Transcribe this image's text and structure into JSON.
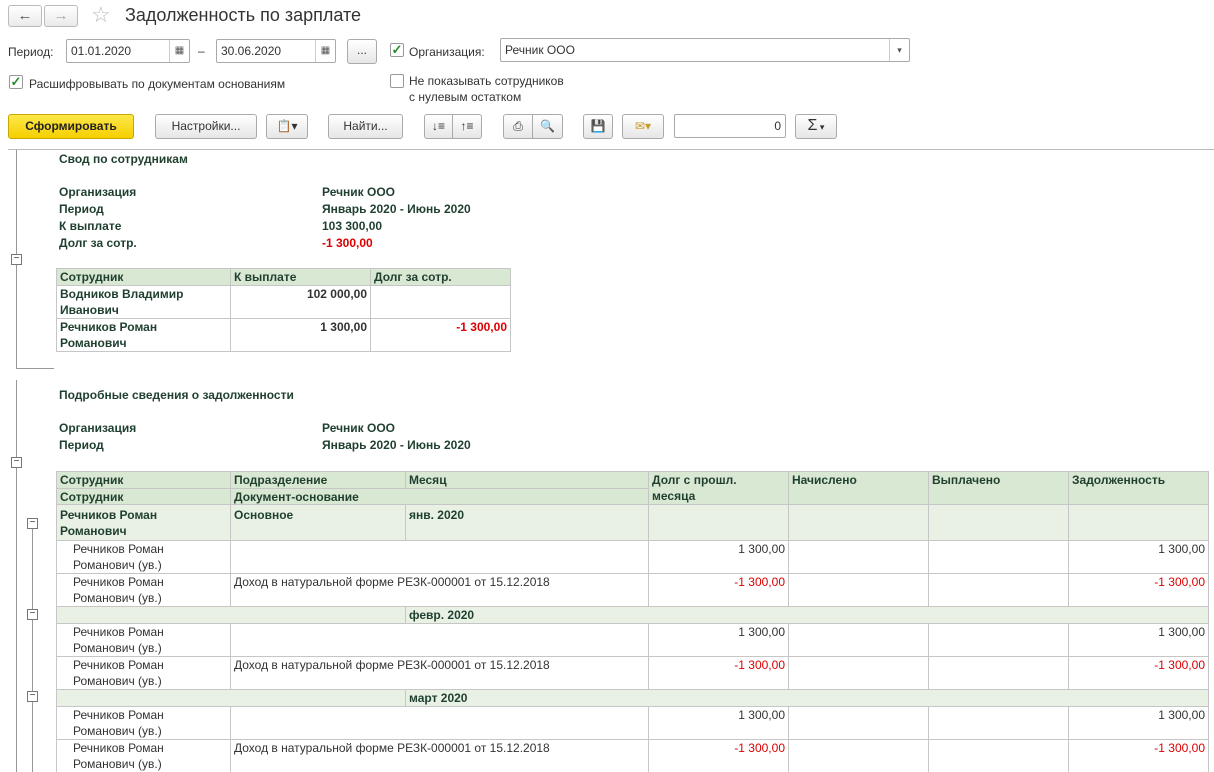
{
  "header": {
    "title": "Задолженность по зарплате",
    "back_icon": "←",
    "forward_icon": "→",
    "star_icon": "☆"
  },
  "filters": {
    "period_label": "Период:",
    "date_from": "01.01.2020",
    "dash": "–",
    "date_to": "30.06.2020",
    "ellipsis": "...",
    "org_label": "Организация:",
    "org_value": "Речник ООО",
    "decode_label": "Расшифровывать по документам основаниям",
    "hide_zero_label_1": "Не показывать сотрудников",
    "hide_zero_label_2": "с нулевым остатком"
  },
  "toolbar": {
    "generate": "Сформировать",
    "settings": "Настройки...",
    "find": "Найти...",
    "sum_value": "0",
    "sigma": "Σ"
  },
  "summary": {
    "title": "Свод по сотрудникам",
    "org_label": "Организация",
    "org_value": "Речник ООО",
    "period_label": "Период",
    "period_value": "Январь 2020 - Июнь 2020",
    "pay_label": "К выплате",
    "pay_value": "103 300,00",
    "debt_label": "Долг за сотр.",
    "debt_value": "-1 300,00",
    "columns": [
      "Сотрудник",
      "К выплате",
      "Долг за сотр."
    ],
    "rows": [
      {
        "name1": "Водников Владимир",
        "name2": "Иванович",
        "pay": "102 000,00",
        "debt": ""
      },
      {
        "name1": "Речников Роман",
        "name2": "Романович",
        "pay": "1 300,00",
        "debt": "-1 300,00"
      }
    ]
  },
  "details": {
    "title": "Подробные сведения о задолженности",
    "org_label": "Организация",
    "org_value": "Речник ООО",
    "period_label": "Период",
    "period_value": "Январь 2020 - Июнь 2020",
    "head1": [
      "Сотрудник",
      "Подразделение",
      "Месяц"
    ],
    "head2": [
      "Сотрудник",
      "Документ-основание"
    ],
    "head_prev_1": "Долг с прошл.",
    "head_prev_2": "месяца",
    "head_accrued": "Начислено",
    "head_paid": "Выплачено",
    "head_debt": "Задолженность",
    "emp_name1": "Речников Роман",
    "emp_name2": "Романович",
    "emp_dept": "Основное",
    "months": [
      {
        "month": "янв. 2020",
        "rows": [
          {
            "n1": "Речников Роман",
            "n2": "Романович (ув.)",
            "doc": "",
            "prev": "1 300,00",
            "debt": "1 300,00"
          },
          {
            "n1": "Речников Роман",
            "n2": "Романович (ув.)",
            "doc": "Доход в натуральной форме РЕЗК-000001 от 15.12.2018",
            "prev": "-1 300,00",
            "debt": "-1 300,00"
          }
        ]
      },
      {
        "month": "февр. 2020",
        "rows": [
          {
            "n1": "Речников Роман",
            "n2": "Романович (ув.)",
            "doc": "",
            "prev": "1 300,00",
            "debt": "1 300,00"
          },
          {
            "n1": "Речников Роман",
            "n2": "Романович (ув.)",
            "doc": "Доход в натуральной форме РЕЗК-000001 от 15.12.2018",
            "prev": "-1 300,00",
            "debt": "-1 300,00"
          }
        ]
      },
      {
        "month": "март 2020",
        "rows": [
          {
            "n1": "Речников Роман",
            "n2": "Романович (ув.)",
            "doc": "",
            "prev": "1 300,00",
            "debt": "1 300,00"
          },
          {
            "n1": "Речников Роман",
            "n2": "Романович (ув.)",
            "doc": "Доход в натуральной форме РЕЗК-000001 от 15.12.2018",
            "prev": "-1 300,00",
            "debt": "-1 300,00"
          }
        ]
      }
    ]
  }
}
